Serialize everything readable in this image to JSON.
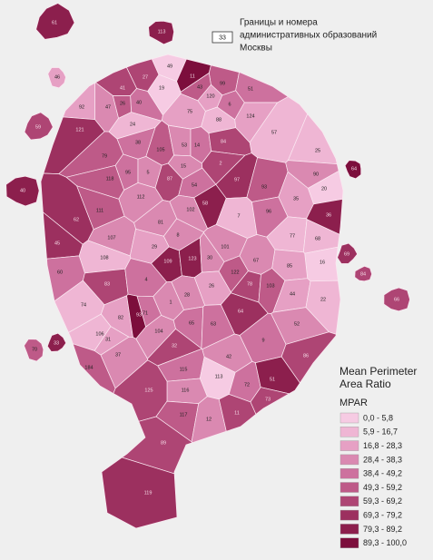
{
  "map": {
    "header": {
      "sample": "33",
      "lines": [
        "Границы и номера",
        "административных образований",
        "Москвы"
      ]
    },
    "legend": {
      "title": [
        "Mean Perimeter",
        "Area Ratio"
      ],
      "subtitle": "MPAR",
      "items": [
        {
          "label": "0,0 - 5,8",
          "color": "#f6cbe3"
        },
        {
          "label": "5,9 - 16,7",
          "color": "#efb6d4"
        },
        {
          "label": "16,8 - 28,3",
          "color": "#e6a0c4"
        },
        {
          "label": "28,4 - 38,3",
          "color": "#da89b1"
        },
        {
          "label": "38,4 - 49,2",
          "color": "#cd719e"
        },
        {
          "label": "49,3 - 59,2",
          "color": "#be5a88"
        },
        {
          "label": "59,3 - 69,2",
          "color": "#ae4574"
        },
        {
          "label": "69,3 - 79,2",
          "color": "#9c305f"
        },
        {
          "label": "79,3 - 89,2",
          "color": "#8c1f4d"
        },
        {
          "label": "89,3 - 100,0",
          "color": "#7c0e3c"
        }
      ]
    },
    "districts": [
      {
        "label": "49",
        "class": 0
      },
      {
        "label": "19",
        "class": 0
      },
      {
        "label": "11",
        "class": 9
      },
      {
        "label": "99",
        "class": 5
      },
      {
        "label": "27",
        "class": 6
      },
      {
        "label": "41",
        "class": 6
      },
      {
        "label": "40",
        "class": 4
      },
      {
        "label": "47",
        "class": 3
      },
      {
        "label": "92",
        "class": 2
      },
      {
        "label": "26",
        "class": 5
      },
      {
        "label": "120",
        "class": 2
      },
      {
        "label": "43",
        "class": 5
      },
      {
        "label": "51",
        "class": 4
      },
      {
        "label": "6",
        "class": 4
      },
      {
        "label": "75",
        "class": 2
      },
      {
        "label": "88",
        "class": 1
      },
      {
        "label": "124",
        "class": 2
      },
      {
        "label": "24",
        "class": 1
      },
      {
        "label": "121",
        "class": 7
      },
      {
        "label": "57",
        "class": 1
      },
      {
        "label": "38",
        "class": 4
      },
      {
        "label": "105",
        "class": 5
      },
      {
        "label": "53",
        "class": 3
      },
      {
        "label": "14",
        "class": 4
      },
      {
        "label": "84",
        "class": 6
      },
      {
        "label": "25",
        "class": 1
      },
      {
        "label": "79",
        "class": 5
      },
      {
        "label": "95",
        "class": 4
      },
      {
        "label": "5",
        "class": 3
      },
      {
        "label": "15",
        "class": 3
      },
      {
        "label": "2",
        "class": 6
      },
      {
        "label": "97",
        "class": 7
      },
      {
        "label": "93",
        "class": 5
      },
      {
        "label": "90",
        "class": 3
      },
      {
        "label": "20",
        "class": 0
      },
      {
        "label": "118",
        "class": 5
      },
      {
        "label": "87",
        "class": 6
      },
      {
        "label": "54",
        "class": 4
      },
      {
        "label": "112",
        "class": 3
      },
      {
        "label": "35",
        "class": 2
      },
      {
        "label": "102",
        "class": 3
      },
      {
        "label": "58",
        "class": 8
      },
      {
        "label": "7",
        "class": 1
      },
      {
        "label": "96",
        "class": 4
      },
      {
        "label": "36",
        "class": 8
      },
      {
        "label": "81",
        "class": 3
      },
      {
        "label": "62",
        "class": 7
      },
      {
        "label": "111",
        "class": 5
      },
      {
        "label": "107",
        "class": 3
      },
      {
        "label": "29",
        "class": 2
      },
      {
        "label": "101",
        "class": 3
      },
      {
        "label": "8",
        "class": 3
      },
      {
        "label": "77",
        "class": 1
      },
      {
        "label": "68",
        "class": 1
      },
      {
        "label": "45",
        "class": 7
      },
      {
        "label": "109",
        "class": 8
      },
      {
        "label": "123",
        "class": 8
      },
      {
        "label": "30",
        "class": 3
      },
      {
        "label": "108",
        "class": 1
      },
      {
        "label": "16",
        "class": 0
      },
      {
        "label": "85",
        "class": 2
      },
      {
        "label": "67",
        "class": 3
      },
      {
        "label": "60",
        "class": 4
      },
      {
        "label": "122",
        "class": 5
      },
      {
        "label": "78",
        "class": 6
      },
      {
        "label": "103",
        "class": 5
      },
      {
        "label": "83",
        "class": 6
      },
      {
        "label": "4",
        "class": 4
      },
      {
        "label": "26",
        "class": 2
      },
      {
        "label": "44",
        "class": 2
      },
      {
        "label": "22",
        "class": 1
      },
      {
        "label": "28",
        "class": 3
      },
      {
        "label": "1",
        "class": 3
      },
      {
        "label": "74",
        "class": 1
      },
      {
        "label": "64",
        "class": 7
      },
      {
        "label": "71",
        "class": 4
      },
      {
        "label": "82",
        "class": 2
      },
      {
        "label": "93",
        "class": 9
      },
      {
        "label": "65",
        "class": 4
      },
      {
        "label": "63",
        "class": 4
      },
      {
        "label": "52",
        "class": 3
      },
      {
        "label": "106",
        "class": 1
      },
      {
        "label": "104",
        "class": 3
      },
      {
        "label": "31",
        "class": 2
      },
      {
        "label": "37",
        "class": 3
      },
      {
        "label": "32",
        "class": 6
      },
      {
        "label": "9",
        "class": 4
      },
      {
        "label": "42",
        "class": 3
      },
      {
        "label": "86",
        "class": 6
      },
      {
        "label": "184",
        "class": 5
      },
      {
        "label": "115",
        "class": 4
      },
      {
        "label": "113",
        "class": 0
      },
      {
        "label": "72",
        "class": 4
      },
      {
        "label": "51",
        "class": 8
      },
      {
        "label": "116",
        "class": 3
      },
      {
        "label": "125",
        "class": 6
      },
      {
        "label": "73",
        "class": 6
      },
      {
        "label": "117",
        "class": 5
      },
      {
        "label": "12",
        "class": 3
      },
      {
        "label": "11",
        "class": 6
      },
      {
        "label": "89",
        "class": 6
      },
      {
        "label": "119",
        "class": 7
      },
      {
        "label": "61",
        "class": 8
      },
      {
        "label": "113",
        "class": 8
      },
      {
        "label": "46",
        "class": 2
      },
      {
        "label": "59",
        "class": 6
      },
      {
        "label": "40",
        "class": 8
      },
      {
        "label": "70",
        "class": 5
      },
      {
        "label": "33",
        "class": 8
      },
      {
        "label": "66",
        "class": 6
      },
      {
        "label": "64",
        "class": 9
      },
      {
        "label": "69",
        "class": 7
      },
      {
        "label": "84",
        "class": 6
      }
    ]
  }
}
